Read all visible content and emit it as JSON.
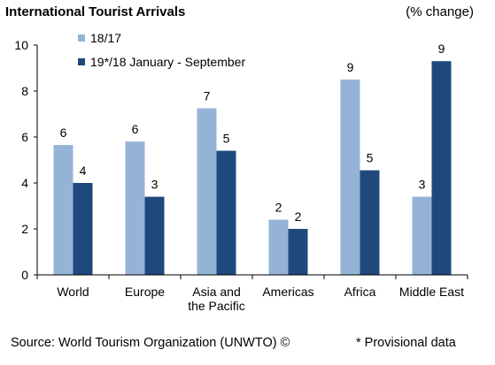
{
  "header": {
    "title": "International Tourist Arrivals",
    "unit": "(% change)"
  },
  "footer": {
    "source": "Source: World Tourism Organization (UNWTO) ©",
    "note": "* Provisional data"
  },
  "colors": {
    "series1": "#95b3d7",
    "series2": "#1f497d",
    "axis": "#000000"
  },
  "chart_data": {
    "type": "bar",
    "title": "International Tourist Arrivals",
    "ylabel": "(% change)",
    "ylim": [
      0,
      10
    ],
    "yticks": [
      "0",
      "2",
      "4",
      "6",
      "8",
      "10"
    ],
    "grid": false,
    "legend": "top-left",
    "categories": [
      [
        "World"
      ],
      [
        "Europe"
      ],
      [
        "Asia and",
        "the Pacific"
      ],
      [
        "Americas"
      ],
      [
        "Africa"
      ],
      [
        "Middle East"
      ]
    ],
    "series": [
      {
        "name": "18/17",
        "values": [
          5.65,
          5.8,
          7.25,
          2.4,
          8.5,
          3.4
        ],
        "labels": [
          "6",
          "6",
          "7",
          "2",
          "9",
          "3"
        ]
      },
      {
        "name": "19*/18 January - September",
        "values": [
          4.0,
          3.4,
          5.4,
          2.0,
          4.55,
          9.3
        ],
        "labels": [
          "4",
          "3",
          "5",
          "2",
          "5",
          "9"
        ]
      }
    ]
  }
}
